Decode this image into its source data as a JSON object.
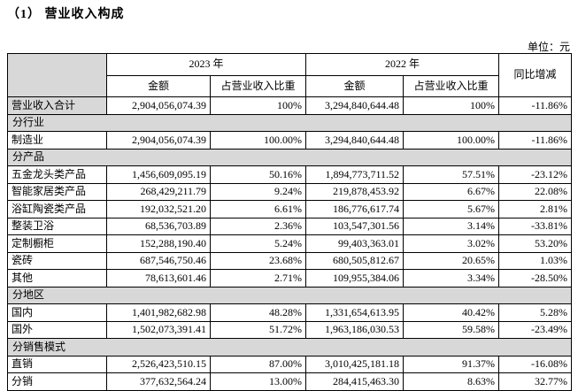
{
  "page": {
    "title": "（1） 营业收入构成",
    "unit_label": "单位：元"
  },
  "colors": {
    "section_bg": "#d8d8d8",
    "border": "#000000"
  },
  "table": {
    "header": {
      "year_2023": "2023 年",
      "year_2022": "2022 年",
      "yoy": "同比增减",
      "amount": "金额",
      "pct_of_revenue": "占营业收入比重"
    },
    "rows": [
      {
        "type": "data",
        "label": "营业收入合计",
        "label_gray": true,
        "a23": "2,904,056,074.39",
        "p23": "100%",
        "a22": "3,294,840,644.48",
        "p22": "100%",
        "yoy": "-11.86%"
      },
      {
        "type": "section",
        "label": "分行业"
      },
      {
        "type": "data",
        "label": "制造业",
        "a23": "2,904,056,074.39",
        "p23": "100.00%",
        "a22": "3,294,840,644.48",
        "p22": "100.00%",
        "yoy": "-11.86%"
      },
      {
        "type": "section",
        "label": "分产品"
      },
      {
        "type": "data",
        "label": "五金龙头类产品",
        "a23": "1,456,609,095.19",
        "p23": "50.16%",
        "a22": "1,894,773,711.52",
        "p22": "57.51%",
        "yoy": "-23.12%"
      },
      {
        "type": "data",
        "label": "智能家居类产品",
        "a23": "268,429,211.79",
        "p23": "9.24%",
        "a22": "219,878,453.92",
        "p22": "6.67%",
        "yoy": "22.08%"
      },
      {
        "type": "data",
        "label": "浴缸陶瓷类产品",
        "a23": "192,032,521.20",
        "p23": "6.61%",
        "a22": "186,776,617.74",
        "p22": "5.67%",
        "yoy": "2.81%"
      },
      {
        "type": "data",
        "label": "整装卫浴",
        "a23": "68,536,703.89",
        "p23": "2.36%",
        "a22": "103,547,301.56",
        "p22": "3.14%",
        "yoy": "-33.81%"
      },
      {
        "type": "data",
        "label": "定制橱柜",
        "a23": "152,288,190.40",
        "p23": "5.24%",
        "a22": "99,403,363.01",
        "p22": "3.02%",
        "yoy": "53.20%"
      },
      {
        "type": "data",
        "label": "瓷砖",
        "a23": "687,546,750.46",
        "p23": "23.68%",
        "a22": "680,505,812.67",
        "p22": "20.65%",
        "yoy": "1.03%"
      },
      {
        "type": "data",
        "label": "其他",
        "a23": "78,613,601.46",
        "p23": "2.71%",
        "a22": "109,955,384.06",
        "p22": "3.34%",
        "yoy": "-28.50%"
      },
      {
        "type": "section",
        "label": "分地区"
      },
      {
        "type": "data",
        "label": "国内",
        "a23": "1,401,982,682.98",
        "p23": "48.28%",
        "a22": "1,331,654,613.95",
        "p22": "40.42%",
        "yoy": "5.28%"
      },
      {
        "type": "data",
        "label": "国外",
        "a23": "1,502,073,391.41",
        "p23": "51.72%",
        "a22": "1,963,186,030.53",
        "p22": "59.58%",
        "yoy": "-23.49%"
      },
      {
        "type": "section",
        "label": "分销售模式"
      },
      {
        "type": "data",
        "label": "直销",
        "a23": "2,526,423,510.15",
        "p23": "87.00%",
        "a22": "3,010,425,181.18",
        "p22": "91.37%",
        "yoy": "-16.08%"
      },
      {
        "type": "data",
        "label": "分销",
        "a23": "377,632,564.24",
        "p23": "13.00%",
        "a22": "284,415,463.30",
        "p22": "8.63%",
        "yoy": "32.77%"
      }
    ]
  }
}
